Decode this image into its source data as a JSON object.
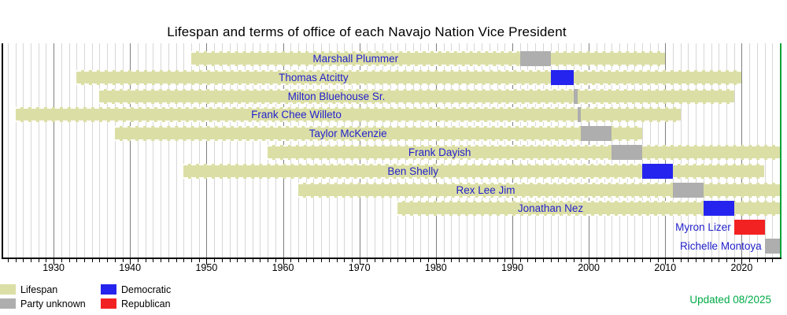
{
  "chart_data": {
    "type": "bar",
    "variant": "timeline_gantt",
    "title": "Lifespan and terms of office of each Navajo Nation Vice President",
    "updated_note": "Updated 08/2025",
    "axis": {
      "min_year": 1923.2,
      "max_year": 2025,
      "tick_interval_years": 1,
      "decade_tick_labels": [
        "1930",
        "1940",
        "1950",
        "1960",
        "1970",
        "1980",
        "1990",
        "2000",
        "2010",
        "2020"
      ],
      "grid": "vertical-yearly"
    },
    "legend": [
      {
        "label": "Lifespan",
        "color_key": "lifespan",
        "column": 0,
        "row": 0
      },
      {
        "label": "Party unknown",
        "color_key": "unknown",
        "column": 0,
        "row": 1
      },
      {
        "label": "Democratic",
        "color_key": "democratic",
        "column": 1,
        "row": 0
      },
      {
        "label": "Republican",
        "color_key": "republican",
        "column": 1,
        "row": 1
      }
    ],
    "colors": {
      "lifespan": "#dcdfa5",
      "unknown": "#aeaeae",
      "democratic": "#2424ee",
      "republican": "#f22222",
      "name_text": "#2222cc",
      "present_line": "#00a33c",
      "updated_text": "#00ab47",
      "grid_year": "#d7d7d7",
      "grid_decade": "#7f7f7f"
    },
    "rows": [
      {
        "name": "Marshall Plummer",
        "birth": 1948,
        "death": 2010,
        "term_start": 1991,
        "term_end": 1995,
        "party": "unknown"
      },
      {
        "name": "Thomas Atcitty",
        "birth": 1933,
        "death": 2020,
        "term_start": 1995,
        "term_end": 1998,
        "party": "democratic"
      },
      {
        "name": "Milton Bluehouse Sr.",
        "birth": 1936,
        "death": 2019,
        "term_start": 1998,
        "term_end": 1998.5,
        "party": "unknown"
      },
      {
        "name": "Frank Chee Willeto",
        "birth": 1925,
        "death": 2012,
        "term_start": 1998.5,
        "term_end": 1999,
        "party": "unknown"
      },
      {
        "name": "Taylor McKenzie",
        "birth": 1938,
        "death": 2007,
        "term_start": 1999,
        "term_end": 2003,
        "party": "unknown"
      },
      {
        "name": "Frank Dayish",
        "birth": 1958,
        "death": null,
        "term_start": 2003,
        "term_end": 2007,
        "party": "unknown"
      },
      {
        "name": "Ben Shelly",
        "birth": 1947,
        "death": 2022.9,
        "term_start": 2007,
        "term_end": 2011,
        "party": "democratic"
      },
      {
        "name": "Rex Lee Jim",
        "birth": 1962,
        "death": null,
        "term_start": 2011,
        "term_end": 2015,
        "party": "unknown"
      },
      {
        "name": "Jonathan Nez",
        "birth": 1975,
        "death": null,
        "term_start": 2015,
        "term_end": 2019,
        "party": "democratic"
      },
      {
        "name": "Myron Lizer",
        "birth": null,
        "death": null,
        "term_start": 2019,
        "term_end": 2023,
        "party": "republican"
      },
      {
        "name": "Richelle Montoya",
        "birth": null,
        "death": null,
        "term_start": 2023,
        "term_end": null,
        "party": "unknown"
      }
    ]
  }
}
